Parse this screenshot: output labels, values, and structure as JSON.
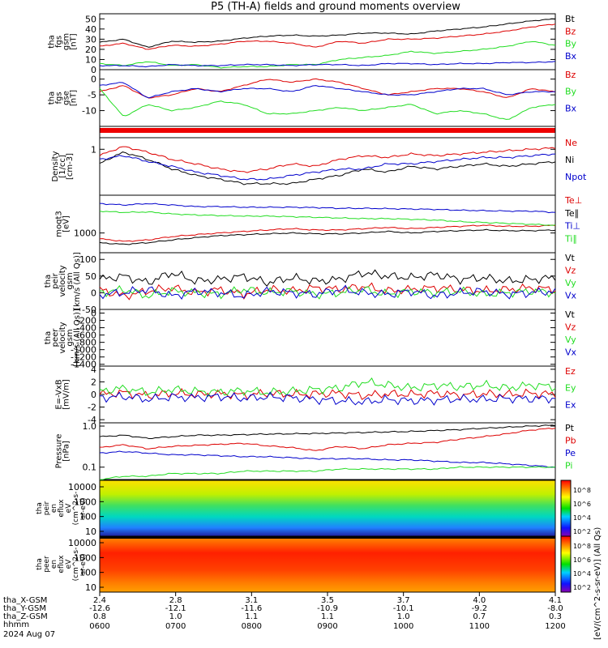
{
  "title": "P5 (TH-A) fields and ground moments overview",
  "colors": {
    "black": "#000000",
    "red": "#dd0000",
    "green": "#22dd22",
    "blue": "#0000cc"
  },
  "chart_data": {
    "type": "line",
    "time_axis": {
      "hhmm": [
        "0600",
        "0700",
        "0800",
        "0900",
        "1000",
        "1100",
        "1200"
      ],
      "date": "2024 Aug 07",
      "rows": [
        {
          "label": "tha_X-GSM",
          "values": [
            "2.4",
            "2.8",
            "3.1",
            "3.5",
            "3.7",
            "4.0",
            "4.1"
          ]
        },
        {
          "label": "tha_Y-GSM",
          "values": [
            "-12.6",
            "-12.1",
            "-11.6",
            "-10.9",
            "-10.1",
            "-9.2",
            "-8.0"
          ]
        },
        {
          "label": "tha_Z-GSM",
          "values": [
            "0.8",
            "1.0",
            "1.1",
            "1.1",
            "1.0",
            "0.7",
            "0.3"
          ]
        },
        {
          "label": "hhmm",
          "values": []
        }
      ]
    },
    "panels": [
      {
        "id": "fgs_gsm",
        "ylabel": [
          "tha",
          "fgs",
          "gsm",
          "[nT]"
        ],
        "ylim": [
          0,
          55
        ],
        "ticks": [
          {
            "v": 50,
            "l": "50"
          },
          {
            "v": 40,
            "l": "40"
          },
          {
            "v": 30,
            "l": "30"
          },
          {
            "v": 20,
            "l": "20"
          },
          {
            "v": 10,
            "l": "10"
          },
          {
            "v": 0,
            "l": "0"
          }
        ],
        "series": [
          {
            "name": "Bt",
            "color": "black",
            "values": [
              27,
              30,
              22,
              28,
              27,
              28,
              31,
              33,
              34,
              33,
              34,
              36,
              36,
              35,
              38,
              40,
              42,
              45,
              48,
              50
            ]
          },
          {
            "name": "Bz",
            "color": "red",
            "values": [
              23,
              26,
              20,
              24,
              23,
              25,
              28,
              28,
              26,
              22,
              28,
              26,
              30,
              30,
              31,
              33,
              35,
              38,
              42,
              45
            ]
          },
          {
            "name": "By",
            "color": "green",
            "values": [
              6,
              4,
              8,
              4,
              5,
              2,
              3,
              3,
              5,
              5,
              10,
              12,
              14,
              18,
              16,
              18,
              20,
              23,
              28,
              24
            ]
          },
          {
            "name": "Bx",
            "color": "blue",
            "values": [
              4,
              4,
              3,
              5,
              4,
              4,
              5,
              5,
              4,
              5,
              5,
              4,
              6,
              6,
              5,
              6,
              6,
              7,
              7,
              8
            ]
          }
        ]
      },
      {
        "id": "fgs_gse",
        "ylabel": [
          "tha",
          "fgs",
          "gse",
          "[nT]"
        ],
        "ylim": [
          -15,
          3
        ],
        "ticks": [
          {
            "v": 0,
            "l": "0"
          },
          {
            "v": -5,
            "l": "-5"
          },
          {
            "v": -10,
            "l": "-10"
          }
        ],
        "series": [
          {
            "name": "Bz",
            "color": "red",
            "values": [
              -4,
              -2,
              -6,
              -5,
              -3,
              -4,
              -2,
              0,
              -1,
              0,
              -1,
              -3,
              -5,
              -4,
              -3,
              -3,
              -4,
              -6,
              -3,
              -4
            ]
          },
          {
            "name": "By",
            "color": "green",
            "values": [
              -3,
              -12,
              -8,
              -10,
              -9,
              -7,
              -8,
              -11,
              -11,
              -10,
              -9,
              -10,
              -9,
              -8,
              -11,
              -10,
              -11,
              -13,
              -9,
              -8
            ]
          },
          {
            "name": "Bx",
            "color": "blue",
            "values": [
              -2,
              -1,
              -6,
              -4,
              -3,
              -4,
              -3,
              -3,
              -4,
              -2,
              -3,
              -4,
              -5,
              -5,
              -4,
              -3,
              -3,
              -5,
              -4,
              -4
            ]
          }
        ]
      },
      {
        "id": "density",
        "ylabel": [
          "Density",
          "[1/cc]",
          "[cm-3]"
        ],
        "ylim": [
          0.2,
          1.5
        ],
        "ticks": [
          {
            "v": 1,
            "l": "1"
          }
        ],
        "series": [
          {
            "name": "Ne",
            "color": "red",
            "values": [
              0.8,
              1.1,
              0.9,
              0.7,
              0.6,
              0.5,
              0.45,
              0.5,
              0.6,
              0.55,
              0.7,
              0.8,
              0.75,
              0.85,
              0.8,
              0.85,
              0.9,
              0.95,
              1.0,
              1.05
            ]
          },
          {
            "name": "Ni",
            "color": "black",
            "values": [
              0.6,
              0.9,
              0.7,
              0.5,
              0.4,
              0.35,
              0.3,
              0.3,
              0.3,
              0.35,
              0.4,
              0.5,
              0.45,
              0.55,
              0.5,
              0.55,
              0.6,
              0.55,
              0.6,
              0.65
            ]
          },
          {
            "name": "Npot",
            "color": "blue",
            "values": [
              0.7,
              0.8,
              0.65,
              0.55,
              0.45,
              0.4,
              0.35,
              0.35,
              0.4,
              0.45,
              0.5,
              0.5,
              0.6,
              0.6,
              0.65,
              0.7,
              0.75,
              0.75,
              0.8,
              0.85
            ]
          }
        ]
      },
      {
        "id": "temp",
        "ylabel": [
          "moqt3",
          "[eV]"
        ],
        "ylim": [
          300,
          10000
        ],
        "ticks": [
          {
            "v": 1000,
            "l": "1000"
          }
        ],
        "series": [
          {
            "name": "Te⊥",
            "color": "red",
            "values": [
              700,
              600,
              650,
              800,
              900,
              1000,
              1100,
              1200,
              1300,
              1200,
              1200,
              1300,
              1400,
              1300,
              1400,
              1500,
              1600,
              1500,
              1500,
              1600
            ]
          },
          {
            "name": "Te∥",
            "color": "black",
            "values": [
              550,
              500,
              550,
              650,
              750,
              850,
              900,
              950,
              1000,
              950,
              950,
              1000,
              1100,
              1000,
              1100,
              1150,
              1200,
              1150,
              1150,
              1200
            ]
          },
          {
            "name": "Ti⊥",
            "color": "blue",
            "values": [
              6000,
              5500,
              6000,
              5500,
              5000,
              5000,
              4800,
              4800,
              4800,
              4700,
              4500,
              4500,
              4400,
              4300,
              4200,
              4000,
              3900,
              3800,
              3800,
              3500
            ]
          },
          {
            "name": "Ti∥",
            "color": "green",
            "values": [
              3800,
              3500,
              3600,
              3200,
              3000,
              2900,
              2800,
              2800,
              2700,
              2600,
              2500,
              2400,
              2400,
              2300,
              2200,
              2000,
              1900,
              1800,
              1700,
              1600
            ]
          }
        ]
      },
      {
        "id": "peir_vel",
        "ylabel": [
          "tha",
          "peir",
          "velocity",
          "gsm",
          "[km/s (All Qs)]"
        ],
        "ylim": [
          -50,
          120
        ],
        "ticks": [
          {
            "v": 100,
            "l": "100"
          },
          {
            "v": 50,
            "l": "50"
          },
          {
            "v": 0,
            "l": "0"
          },
          {
            "v": -50,
            "l": "-50"
          }
        ],
        "series": [
          {
            "name": "Vt",
            "color": "black",
            "values": [
              40,
              50,
              30,
              60,
              35,
              40,
              50,
              30,
              45,
              35,
              40,
              60,
              50,
              45,
              55,
              40,
              45,
              35,
              40,
              45
            ]
          },
          {
            "name": "Vz",
            "color": "red",
            "values": [
              10,
              -10,
              5,
              15,
              0,
              10,
              -5,
              10,
              5,
              15,
              10,
              20,
              5,
              10,
              15,
              10,
              5,
              10,
              15,
              10
            ]
          },
          {
            "name": "Vy",
            "color": "green",
            "values": [
              0,
              10,
              -10,
              5,
              0,
              -5,
              10,
              0,
              5,
              -5,
              0,
              10,
              -5,
              5,
              0,
              5,
              -5,
              0,
              5,
              0
            ]
          },
          {
            "name": "Vx",
            "color": "blue",
            "values": [
              -5,
              0,
              10,
              -10,
              5,
              0,
              -10,
              5,
              0,
              -5,
              10,
              0,
              -5,
              5,
              -10,
              0,
              5,
              -5,
              0,
              5
            ]
          }
        ]
      },
      {
        "id": "peer_vel",
        "ylabel": [
          "tha",
          "peer",
          "velocity",
          "gsm",
          "[km/s (All Qs)]"
        ],
        "ylim": [
          -1450,
          100
        ],
        "ticks": [
          {
            "v": 0,
            "l": "0"
          },
          {
            "v": -200,
            "l": "-200"
          },
          {
            "v": -400,
            "l": "-400"
          },
          {
            "v": -600,
            "l": "-600"
          },
          {
            "v": -800,
            "l": "-800"
          },
          {
            "v": -1000,
            "l": "-1000"
          },
          {
            "v": -1200,
            "l": "-1200"
          },
          {
            "v": -1400,
            "l": "-1400"
          }
        ],
        "series": [
          {
            "name": "Vt",
            "color": "black",
            "values": []
          },
          {
            "name": "Vz",
            "color": "red",
            "values": []
          },
          {
            "name": "Vy",
            "color": "green",
            "values": []
          },
          {
            "name": "Vx",
            "color": "blue",
            "values": []
          }
        ]
      },
      {
        "id": "efield",
        "ylabel": [
          "E=-VxB",
          "[mV/m]"
        ],
        "ylim": [
          -4.5,
          4.5
        ],
        "ticks": [
          {
            "v": 4,
            "l": "4"
          },
          {
            "v": 2,
            "l": "2"
          },
          {
            "v": 0,
            "l": "0"
          },
          {
            "v": -2,
            "l": "-2"
          },
          {
            "v": -4,
            "l": "-4"
          }
        ],
        "series": [
          {
            "name": "Ez",
            "color": "red",
            "values": [
              0,
              0.3,
              -0.2,
              0.2,
              0,
              0.1,
              -0.1,
              0.2,
              0,
              0.1,
              0.2,
              -0.2,
              0.1,
              0,
              0.2,
              -0.1,
              0.1,
              0,
              0.2,
              0
            ]
          },
          {
            "name": "Ey",
            "color": "green",
            "values": [
              0.5,
              1,
              0.3,
              0.8,
              0.5,
              0.4,
              0.6,
              0.3,
              0.5,
              0.8,
              1,
              2,
              1.5,
              1,
              1.5,
              1.2,
              1.5,
              1,
              1.5,
              1.2
            ]
          },
          {
            "name": "Ex",
            "color": "blue",
            "values": [
              -0.5,
              -0.3,
              -0.8,
              -0.4,
              -0.5,
              -0.3,
              -0.6,
              -0.4,
              -0.5,
              -0.8,
              -1,
              -1.2,
              -0.8,
              -1,
              -0.9,
              -0.7,
              -0.8,
              -0.6,
              -0.7,
              -0.6
            ]
          }
        ]
      },
      {
        "id": "pressure",
        "ylabel": [
          "Pressure",
          "[nPa]"
        ],
        "ylim": [
          0.05,
          1.2
        ],
        "ticks": [
          {
            "v": 1,
            "l": "1.0"
          },
          {
            "v": 0.1,
            "l": "0.1"
          }
        ],
        "series": [
          {
            "name": "Pt",
            "color": "black",
            "values": [
              0.55,
              0.6,
              0.5,
              0.55,
              0.6,
              0.6,
              0.62,
              0.64,
              0.65,
              0.66,
              0.68,
              0.7,
              0.72,
              0.74,
              0.78,
              0.82,
              0.88,
              0.94,
              1.0,
              1.05
            ]
          },
          {
            "name": "Pb",
            "color": "red",
            "values": [
              0.3,
              0.35,
              0.28,
              0.32,
              0.34,
              0.36,
              0.38,
              0.33,
              0.3,
              0.25,
              0.32,
              0.28,
              0.35,
              0.38,
              0.4,
              0.48,
              0.55,
              0.65,
              0.8,
              0.9
            ]
          },
          {
            "name": "Pe",
            "color": "blue",
            "values": [
              0.22,
              0.24,
              0.22,
              0.2,
              0.2,
              0.19,
              0.18,
              0.18,
              0.17,
              0.16,
              0.16,
              0.16,
              0.15,
              0.15,
              0.14,
              0.13,
              0.13,
              0.12,
              0.11,
              0.1
            ]
          },
          {
            "name": "Pi",
            "color": "green",
            "values": [
              0.05,
              0.06,
              0.06,
              0.07,
              0.07,
              0.07,
              0.08,
              0.08,
              0.08,
              0.08,
              0.09,
              0.09,
              0.09,
              0.09,
              0.09,
              0.1,
              0.1,
              0.1,
              0.1,
              0.1
            ]
          }
        ]
      }
    ],
    "spectrograms": [
      {
        "id": "peir_en_eflux",
        "ylabel": [
          "tha",
          "peir",
          "en",
          "eflux",
          "eV",
          "(cm^2-s-",
          "sr-eV)"
        ],
        "ticks": [
          "10000",
          "1000",
          "100",
          "10"
        ],
        "colorbar_ticks": [
          "10^8",
          "10^6",
          "10^4",
          "10^2"
        ],
        "colorbar_label": "[eV/(cm^2-s-sr-eV)] (All Qs)"
      },
      {
        "id": "peer_en_eflux",
        "ylabel": [
          "tha",
          "peer",
          "en",
          "eflux",
          "eV",
          "(cm^2-s-",
          "sr-eV)"
        ],
        "ticks": [
          "10000",
          "1000",
          "100",
          "10"
        ],
        "colorbar_ticks": [
          "10^8",
          "10^6",
          "10^4",
          "10^2"
        ],
        "colorbar_label": "[eV/(cm^2-s-sr-eV)] (All Qs)"
      }
    ],
    "legend_placement": "right of each panel",
    "grid": false
  }
}
